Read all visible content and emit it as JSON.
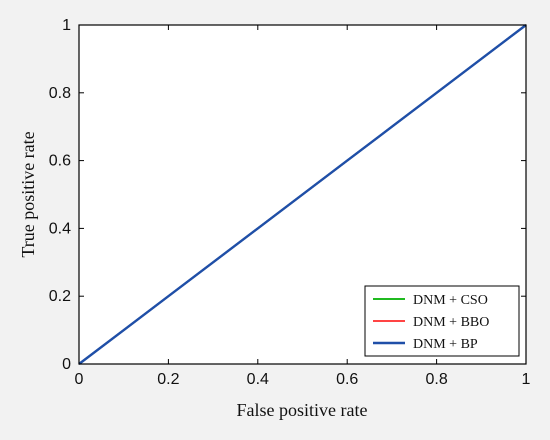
{
  "chart_data": {
    "type": "line",
    "xlabel": "False positive rate",
    "ylabel": "True positive rate",
    "xlim": [
      0,
      1
    ],
    "ylim": [
      0,
      1
    ],
    "x_ticks": [
      0,
      0.2,
      0.4,
      0.6,
      0.8,
      1
    ],
    "y_ticks": [
      0,
      0.2,
      0.4,
      0.6,
      0.8,
      1
    ],
    "x_tick_labels": [
      "0",
      "0.2",
      "0.4",
      "0.6",
      "0.8",
      "1"
    ],
    "y_tick_labels": [
      "0",
      "0.2",
      "0.4",
      "0.6",
      "0.8",
      "1"
    ],
    "grid": false,
    "legend_position": "bottom-right",
    "series": [
      {
        "name": "DNM + CSO",
        "color": "#00b000",
        "x": [
          0,
          0.2,
          0.4,
          0.6,
          0.8,
          1
        ],
        "y": [
          0,
          0.2,
          0.4,
          0.6,
          0.8,
          1
        ]
      },
      {
        "name": "DNM + BBO",
        "color": "#ff2a2a",
        "x": [
          0,
          0.2,
          0.4,
          0.6,
          0.8,
          1
        ],
        "y": [
          0,
          0.2,
          0.4,
          0.6,
          0.8,
          1
        ]
      },
      {
        "name": "DNM + BP",
        "color": "#1f4fa8",
        "x": [
          0,
          0.2,
          0.4,
          0.6,
          0.8,
          1
        ],
        "y": [
          0,
          0.2,
          0.4,
          0.6,
          0.8,
          1
        ]
      }
    ]
  }
}
